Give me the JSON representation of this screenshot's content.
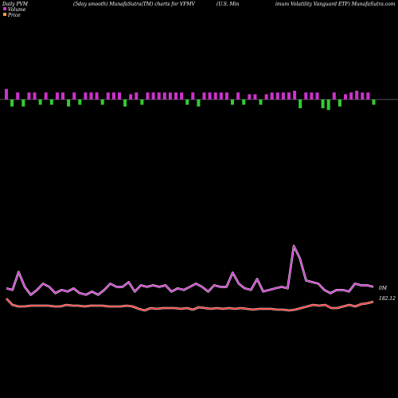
{
  "header": {
    "left": "Daily PVM",
    "center": "(5day smooth) MunafaSutra(TM) charts for VFMV",
    "right_a": "(U.S. Min",
    "right_b": "imum Volatility Vanguard ETF) MunafaSutra.com"
  },
  "legend": {
    "volume_label": "Volume",
    "price_label": "Price"
  },
  "colors": {
    "background": "#000000",
    "bar_up": "#cc33cc",
    "bar_down": "#33cc33",
    "baseline": "#aaaaaa",
    "volume_line": "#cc33cc",
    "price_line": "#ff2a2a",
    "line_outline": "#ffffff"
  },
  "chart_data": {
    "type": "bar+line",
    "volume_bar_level": [
      6,
      -4,
      4,
      -4,
      4,
      4,
      -3,
      4,
      -3,
      4,
      4,
      -4,
      4,
      -3,
      4,
      4,
      4,
      -3,
      4,
      4,
      4,
      -4,
      3,
      4,
      -3,
      4,
      4,
      4,
      4,
      4,
      4,
      4,
      -3,
      4,
      -4,
      4,
      4,
      4,
      4,
      4,
      -3,
      4,
      -3,
      3,
      3,
      -3,
      3,
      4,
      4,
      4,
      4,
      5,
      -5,
      4,
      4,
      4,
      -5,
      -6,
      4,
      -4,
      3,
      4,
      5,
      4,
      4,
      -3
    ],
    "volume_line": [
      34,
      32,
      55,
      36,
      26,
      32,
      40,
      36,
      28,
      32,
      30,
      34,
      28,
      26,
      30,
      26,
      32,
      40,
      36,
      36,
      42,
      30,
      38,
      36,
      38,
      36,
      38,
      30,
      34,
      32,
      36,
      40,
      36,
      30,
      38,
      36,
      36,
      54,
      40,
      34,
      32,
      46,
      30,
      32,
      34,
      36,
      34,
      88,
      72,
      44,
      42,
      40,
      32,
      28,
      32,
      32,
      30,
      40,
      38,
      38,
      36
    ],
    "price_line": [
      16,
      8,
      6,
      6,
      7,
      7,
      7,
      7,
      6,
      6,
      8,
      7,
      7,
      6,
      7,
      7,
      7,
      6,
      6,
      6,
      7,
      6,
      3,
      1,
      4,
      3,
      4,
      4,
      4,
      3,
      4,
      2,
      5,
      4,
      3,
      4,
      3,
      4,
      3,
      4,
      3,
      2,
      3,
      3,
      3,
      2,
      2,
      1,
      2,
      4,
      6,
      8,
      7,
      8,
      4,
      4,
      6,
      8,
      6,
      9,
      10,
      12
    ],
    "volume_label": "0M",
    "price_label": "182.12"
  }
}
